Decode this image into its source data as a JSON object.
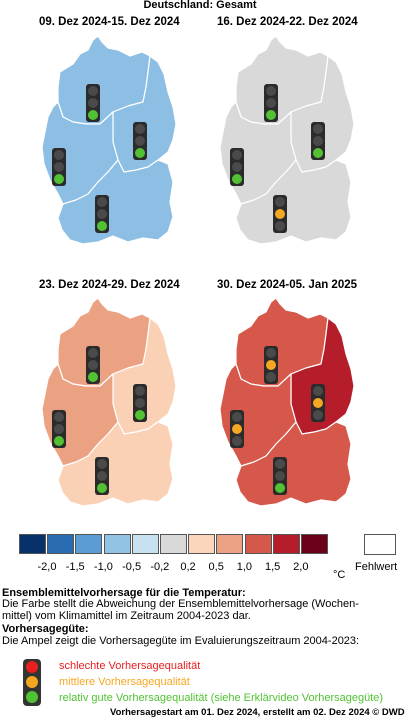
{
  "title": "Deutschland: Gesamt",
  "panels": [
    {
      "title": "09. Dez 2024-15. Dez 2024",
      "north_fill": "#8cbfe3",
      "east_fill": "#8cbfe3",
      "west_fill": "#8cbfe3",
      "south_fill": "#8cbfe3",
      "north_light": "green",
      "east_light": "green",
      "west_light": "green",
      "south_light": "green"
    },
    {
      "title": "16. Dez 2024-22. Dez 2024",
      "north_fill": "#d9d9d9",
      "east_fill": "#d9d9d9",
      "west_fill": "#d9d9d9",
      "south_fill": "#d9d9d9",
      "north_light": "green",
      "east_light": "green",
      "west_light": "green",
      "south_light": "orange"
    },
    {
      "title": "23. Dez 2024-29. Dez 2024",
      "north_fill": "#eba282",
      "east_fill": "#fbd1b5",
      "west_fill": "#eba282",
      "south_fill": "#fbd1b5",
      "north_light": "green",
      "east_light": "green",
      "west_light": "green",
      "south_light": "green"
    },
    {
      "title": "30. Dez 2024-05. Jan 2025",
      "north_fill": "#d5584a",
      "east_fill": "#b51d2b",
      "west_fill": "#d5584a",
      "south_fill": "#d5584a",
      "north_light": "orange",
      "east_light": "orange",
      "west_light": "orange",
      "south_light": "green"
    }
  ],
  "legend": {
    "colors": [
      "#08306b",
      "#2a6cb2",
      "#5a9cd3",
      "#93c3e4",
      "#c8e1f0",
      "#d9d9d9",
      "#fcd5bd",
      "#eba183",
      "#d5594a",
      "#b51d2b",
      "#6b0019"
    ],
    "ticks": [
      "-2,0",
      "-1,5",
      "-1,0",
      "-0,5",
      "-0,2",
      "0,2",
      "0,5",
      "1,0",
      "1,5",
      "2,0"
    ],
    "unit": "°C",
    "missing_label": "Fehlwert"
  },
  "ensemble": {
    "heading": "Ensemblemittelvorhersage für die Temperatur:",
    "line1": "Die Farbe stellt die Abweichung der Ensemblemittelvorhersage (Wochen-",
    "line2": "mittel) vom Klimamittel im Zeitraum 2004-2023 dar."
  },
  "quality": {
    "heading": "Vorhersagegüte:",
    "intro": "Die Ampel zeigt die Vorhersagegüte im Evaluierungszeitraum 2004-2023:",
    "bad": "schlechte Vorhersagequalität",
    "medium": "mittlere Vorhersagequalität",
    "good": "relativ gute Vorhersagequalität (siehe Erklärvideo Vorhersagegüte)",
    "colors": {
      "red": "#e8201f",
      "orange": "#f5a623",
      "green": "#52c234",
      "off": "#4a4a4a",
      "housing": "#2b2b2b"
    }
  },
  "footer": "Vorhersagestart am 01. Dez 2024, erstellt am 02. Dez 2024 © DWD"
}
